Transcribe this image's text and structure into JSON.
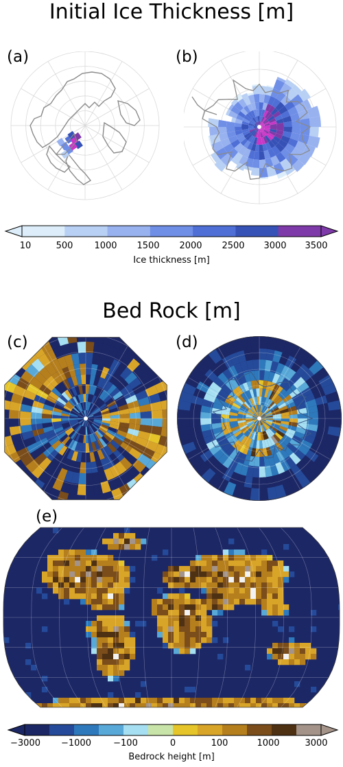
{
  "figure": {
    "title_top": "Initial Ice Thickness [m]",
    "title_mid": "Bed Rock [m]",
    "panels": {
      "a": "(a)",
      "b": "(b)",
      "c": "(c)",
      "d": "(d)",
      "e": "(e)"
    }
  },
  "colors": {
    "ice": [
      "#ddeefa",
      "#b8d0f4",
      "#98b2f0",
      "#6f8ee6",
      "#4f6fd6",
      "#3752b7",
      "#7e3aa8",
      "#c838c6"
    ],
    "bed": [
      "#1c2766",
      "#254a99",
      "#2e79bb",
      "#58a8d8",
      "#a6dff1",
      "#c9e4a8",
      "#e5c52a",
      "#d9a529",
      "#b67f1d",
      "#7a4d1a",
      "#4e3112",
      "#a39389",
      "#f2f2f2"
    ],
    "coast": "#8a8a8a",
    "grid": "#d9d9d9"
  },
  "chart_data": [
    {
      "type": "heatmap",
      "name": "",
      "title": "Initial Ice Thickness [m]",
      "panels": [
        "(a)",
        "(b)"
      ],
      "colorbar": {
        "label": "Ice thickness [m]",
        "ticks": [
          "10",
          "500",
          "1000",
          "1500",
          "2000",
          "2500",
          "3000",
          "3500"
        ],
        "bounds": [
          10,
          500,
          1000,
          1500,
          2000,
          2500,
          3000,
          3500
        ],
        "extend": "both"
      }
    },
    {
      "type": "heatmap",
      "name": "",
      "title": "Bed Rock [m]",
      "panels": [
        "(c)",
        "(d)",
        "(e)"
      ],
      "colorbar": {
        "label": "Bedrock height [m]",
        "ticks": [
          "−3000",
          "−1000",
          "−100",
          "0",
          "100",
          "1000",
          "3000"
        ],
        "bounds": [
          -3000,
          -2000,
          -1000,
          -500,
          -100,
          -50,
          0,
          50,
          100,
          500,
          1000,
          2000,
          3000
        ],
        "extend": "both"
      }
    }
  ],
  "colorbar_ice": {
    "label": "Ice thickness [m]",
    "ticks": [
      "10",
      "500",
      "1000",
      "1500",
      "2000",
      "2500",
      "3000",
      "3500"
    ]
  },
  "colorbar_bed": {
    "label": "Bedrock height [m]",
    "ticks": [
      "−3000",
      "−1000",
      "−100",
      "0",
      "100",
      "1000",
      "3000"
    ]
  }
}
